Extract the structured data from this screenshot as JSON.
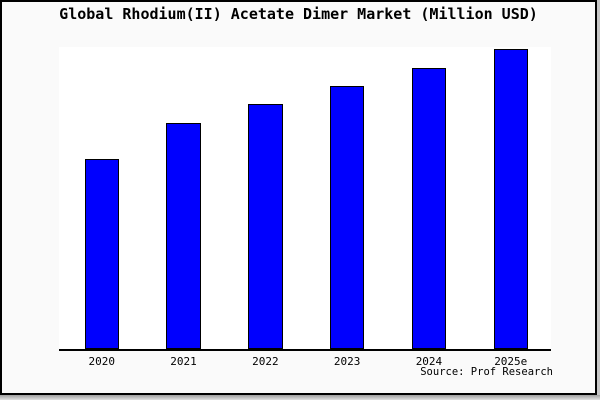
{
  "title": "Global Rhodium(II) Acetate Dimer Market (Million USD)",
  "source_note": "Source: Prof Research",
  "colors": {
    "bar_fill": "#0000fe",
    "bar_border": "#000000",
    "plot_background": "#ffffff",
    "frame_background": "#fafafa",
    "frame_border": "#000000",
    "axis": "#000000"
  },
  "chart_data": {
    "type": "bar",
    "title": "Global Rhodium(II) Acetate Dimer Market (Million USD)",
    "categories": [
      "2020",
      "2021",
      "2022",
      "2023",
      "2024",
      "2025e"
    ],
    "values": [
      63.2,
      75.5,
      81.7,
      87.7,
      93.8,
      100
    ],
    "value_scale": "relative, max bar = 100 (chart shows no numeric y-axis)",
    "xlabel": "",
    "ylabel": "",
    "ylim": [
      0,
      100
    ],
    "y_axis_visible": false,
    "gridlines": false,
    "legend": false,
    "bar_color": "#0000fe",
    "annotation": "Source: Prof Research"
  }
}
